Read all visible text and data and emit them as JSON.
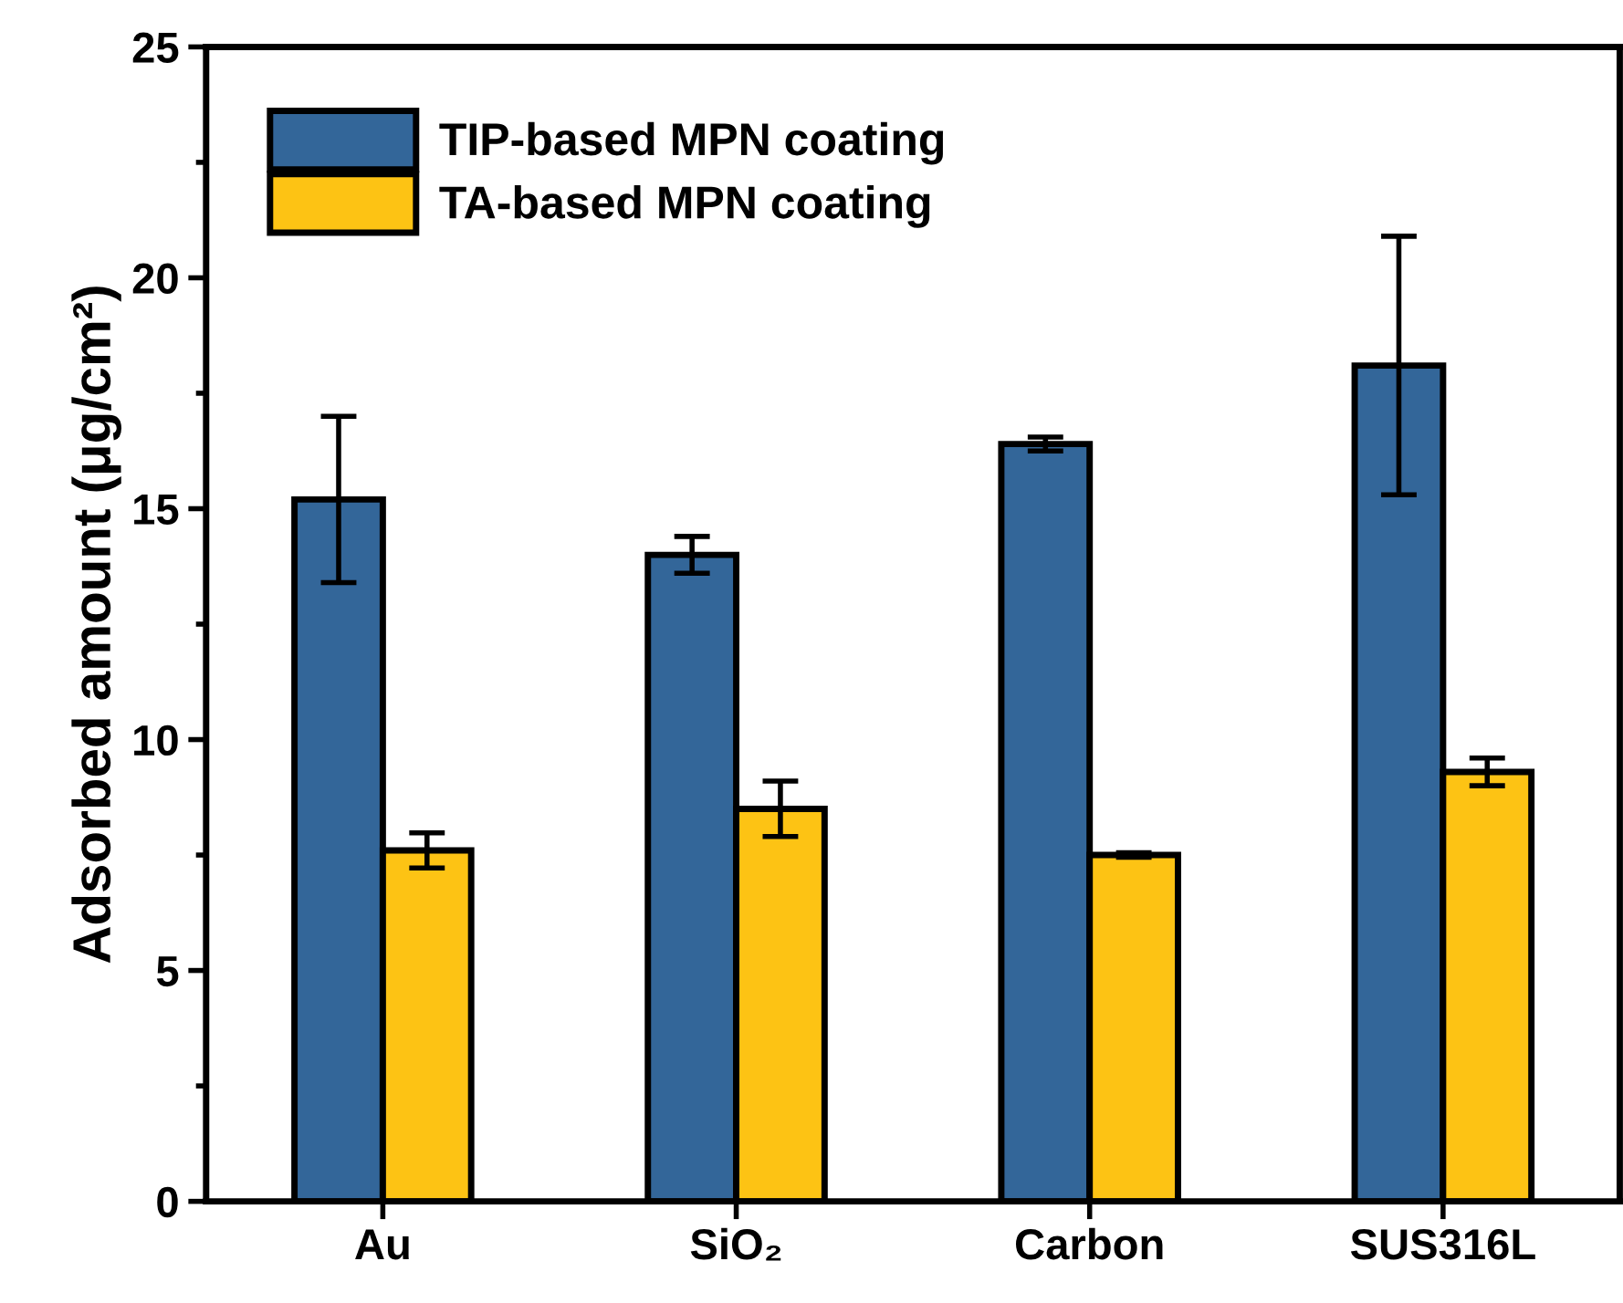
{
  "chart_data": {
    "type": "bar",
    "ylabel": "Adsorbed amount (μg/cm²)",
    "categories": [
      "Au",
      "SiO₂",
      "Carbon",
      "SUS316L"
    ],
    "series": [
      {
        "name": "TIP-based MPN coating",
        "color": "#336699",
        "values": [
          15.2,
          14.0,
          16.4,
          18.1
        ],
        "errors": [
          1.8,
          0.4,
          0.15,
          2.8
        ]
      },
      {
        "name": "TA-based MPN coating",
        "color": "#fdc314",
        "values": [
          7.6,
          8.5,
          7.5,
          9.3
        ],
        "errors": [
          0.38,
          0.6,
          0.05,
          0.3
        ]
      }
    ],
    "ylim": [
      0,
      25
    ],
    "yticks": [
      0,
      5,
      10,
      15,
      20,
      25
    ],
    "grid": false,
    "legend": "top left"
  }
}
